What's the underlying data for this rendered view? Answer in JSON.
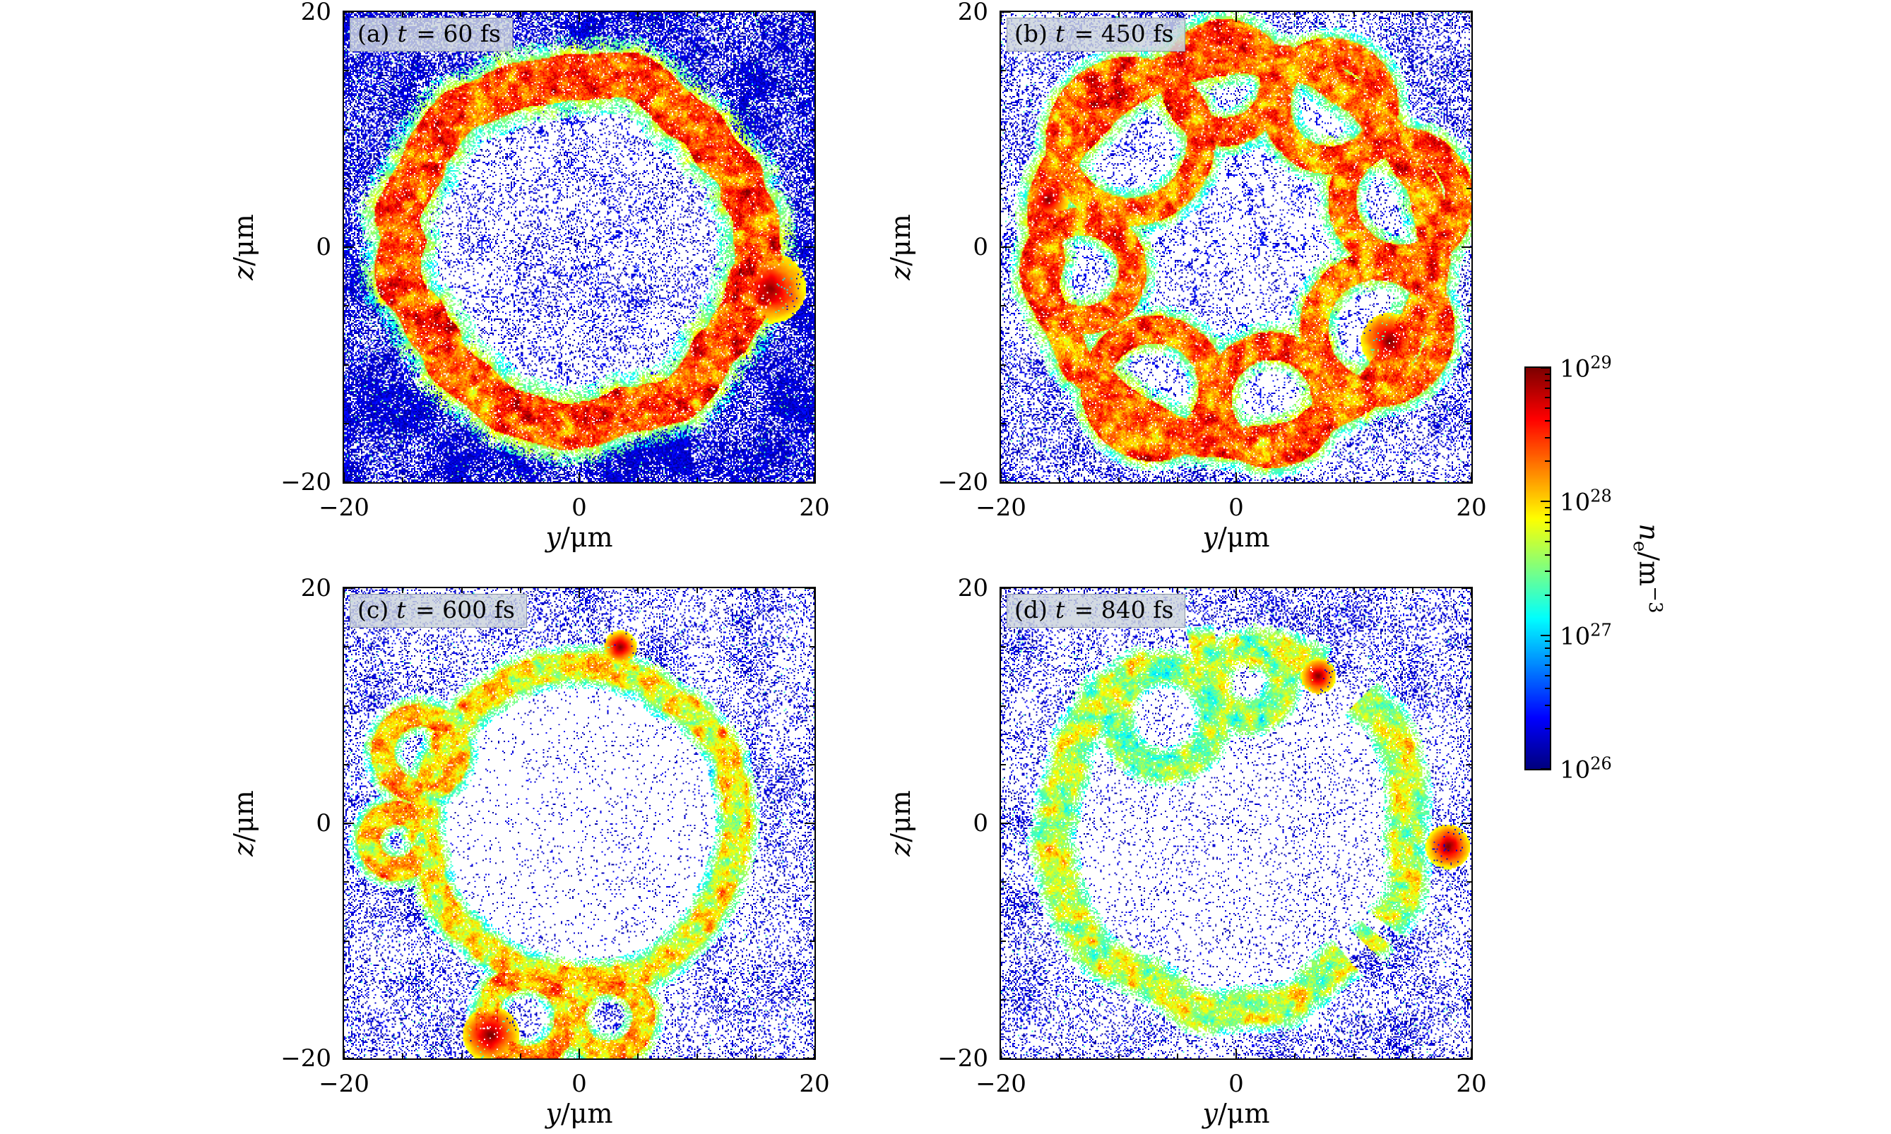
{
  "chart_data": {
    "type": "heatmap",
    "layout": "2x2 grid of y-z electron-density slices with shared logarithmic colorbar",
    "colormap": "jet",
    "panels": [
      {
        "tag": "(a)",
        "time_var": "t",
        "time_rest": " = 60 fs",
        "time_fs": 60,
        "xlabel_var": "y",
        "xlabel_unit": "/μm",
        "ylabel_var": "z",
        "ylabel_unit": "/μm",
        "xlim": [
          -20,
          20
        ],
        "ylim": [
          -20,
          20
        ],
        "xtick_labels": [
          "−20",
          "0",
          "20"
        ],
        "ytick_labels": [
          "20",
          "0",
          "−20"
        ],
        "structure": {
          "seed": 11,
          "ring_radius_um": 15.0,
          "ring_amp_um": 1.7,
          "ring_width_um": 1.8,
          "ring_core_t": 0.8,
          "background_fill": 0.88,
          "bg_min": 0.55,
          "interior_fill": 0.15,
          "interior_web": true,
          "hot_spots": [
            {
              "x": 16.3,
              "y": -3.5,
              "r": 3.0
            }
          ]
        }
      },
      {
        "tag": "(b)",
        "time_var": "t",
        "time_rest": " = 450 fs",
        "time_fs": 450,
        "xlabel_var": "y",
        "xlabel_unit": "/μm",
        "ylabel_var": "z",
        "ylabel_unit": "/μm",
        "xlim": [
          -20,
          20
        ],
        "ylim": [
          -20,
          20
        ],
        "xtick_labels": [
          "−20",
          "0",
          "20"
        ],
        "ytick_labels": [
          "20",
          "0",
          "−20"
        ],
        "structure": {
          "seed": 22,
          "ring_radius_um": 16.3,
          "ring_amp_um": 1.3,
          "ring_width_um": 1.3,
          "ring_core_t": 0.78,
          "background_fill": 0.62,
          "bg_min": 0.2,
          "interior_fill": 0.1,
          "interior_web": true,
          "bubble_width_um": 1.1,
          "bubble_core_t": 0.78,
          "bubbles": [
            {
              "x": -9,
              "y": 9,
              "r": 6.0
            },
            {
              "x": -1,
              "y": 14,
              "r": 4.2
            },
            {
              "x": 8,
              "y": 12,
              "r": 4.6
            },
            {
              "x": 14,
              "y": 4,
              "r": 5.0
            },
            {
              "x": 12,
              "y": -7,
              "r": 5.4
            },
            {
              "x": 3,
              "y": -13,
              "r": 4.6
            },
            {
              "x": -7,
              "y": -12,
              "r": 5.0
            },
            {
              "x": -13,
              "y": -2,
              "r": 4.2
            }
          ],
          "hot_spots": [
            {
              "x": 13,
              "y": -8,
              "r": 2.4
            },
            {
              "x": -16,
              "y": 4,
              "r": 1.8
            }
          ]
        }
      },
      {
        "tag": "(c)",
        "time_var": "t",
        "time_rest": " = 600 fs",
        "time_fs": 600,
        "xlabel_var": "y",
        "xlabel_unit": "/μm",
        "ylabel_var": "z",
        "ylabel_unit": "/μm",
        "xlim": [
          -20,
          20
        ],
        "ylim": [
          -20,
          20
        ],
        "xtick_labels": [
          "−20",
          "0",
          "20"
        ],
        "ytick_labels": [
          "20",
          "0",
          "−20"
        ],
        "structure": {
          "seed": 33,
          "ring_radius_um": 13.5,
          "ring_amp_um": 0.9,
          "ring_width_um": 1.0,
          "ring_core_t": 0.62,
          "background_fill": 0.52,
          "bg_min": 0.2,
          "interior_fill": 0.05,
          "bubble_width_um": 0.9,
          "bubble_core_t": 0.7,
          "bubbles": [
            {
              "x": -4.5,
              "y": -16.5,
              "r": 3.4
            },
            {
              "x": 2.5,
              "y": -16.5,
              "r": 3.0
            },
            {
              "x": -13.5,
              "y": 6,
              "r": 3.2
            },
            {
              "x": -15.5,
              "y": -1.5,
              "r": 2.4
            }
          ],
          "hot_spots": [
            {
              "x": -7.5,
              "y": -18.0,
              "r": 2.4
            },
            {
              "x": 3.5,
              "y": 15.0,
              "r": 1.4
            }
          ]
        }
      },
      {
        "tag": "(d)",
        "time_var": "t",
        "time_rest": " = 840 fs",
        "time_fs": 840,
        "xlabel_var": "y",
        "xlabel_unit": "/μm",
        "ylabel_var": "z",
        "ylabel_unit": "/μm",
        "xlim": [
          -20,
          20
        ],
        "ylim": [
          -20,
          20
        ],
        "xtick_labels": [
          "−20",
          "0",
          "20"
        ],
        "ytick_labels": [
          "20",
          "0",
          "−20"
        ],
        "structure": {
          "seed": 44,
          "ring_radius_um": 15.4,
          "ring_amp_um": 1.8,
          "ring_width_um": 1.1,
          "ring_core_t": 0.56,
          "ring_gate": 0.34,
          "background_fill": 0.55,
          "bg_min": 0.2,
          "interior_fill": 0.08,
          "bubble_width_um": 0.9,
          "bubble_core_t": 0.5,
          "bubbles": [
            {
              "x": -6,
              "y": 9,
              "r": 4.2
            },
            {
              "x": 1,
              "y": 12,
              "r": 3.0
            }
          ],
          "hot_spots": [
            {
              "x": 18,
              "y": -2,
              "r": 1.9
            },
            {
              "x": 7,
              "y": 12.5,
              "r": 1.5
            }
          ]
        }
      }
    ],
    "colorbar": {
      "label_var": "n",
      "label_sub": "e",
      "label_rest": "/m",
      "label_sup": "−3",
      "scale": "log",
      "range_min": 1e+26,
      "range_max": 1e+29,
      "ticks": [
        {
          "base": "10",
          "exp": "26",
          "value": 1e+26,
          "frac": 0
        },
        {
          "base": "10",
          "exp": "27",
          "value": 1e+27,
          "frac": 0.3333
        },
        {
          "base": "10",
          "exp": "28",
          "value": 1e+28,
          "frac": 0.6667
        },
        {
          "base": "10",
          "exp": "29",
          "value": 1e+29,
          "frac": 1
        }
      ]
    }
  }
}
